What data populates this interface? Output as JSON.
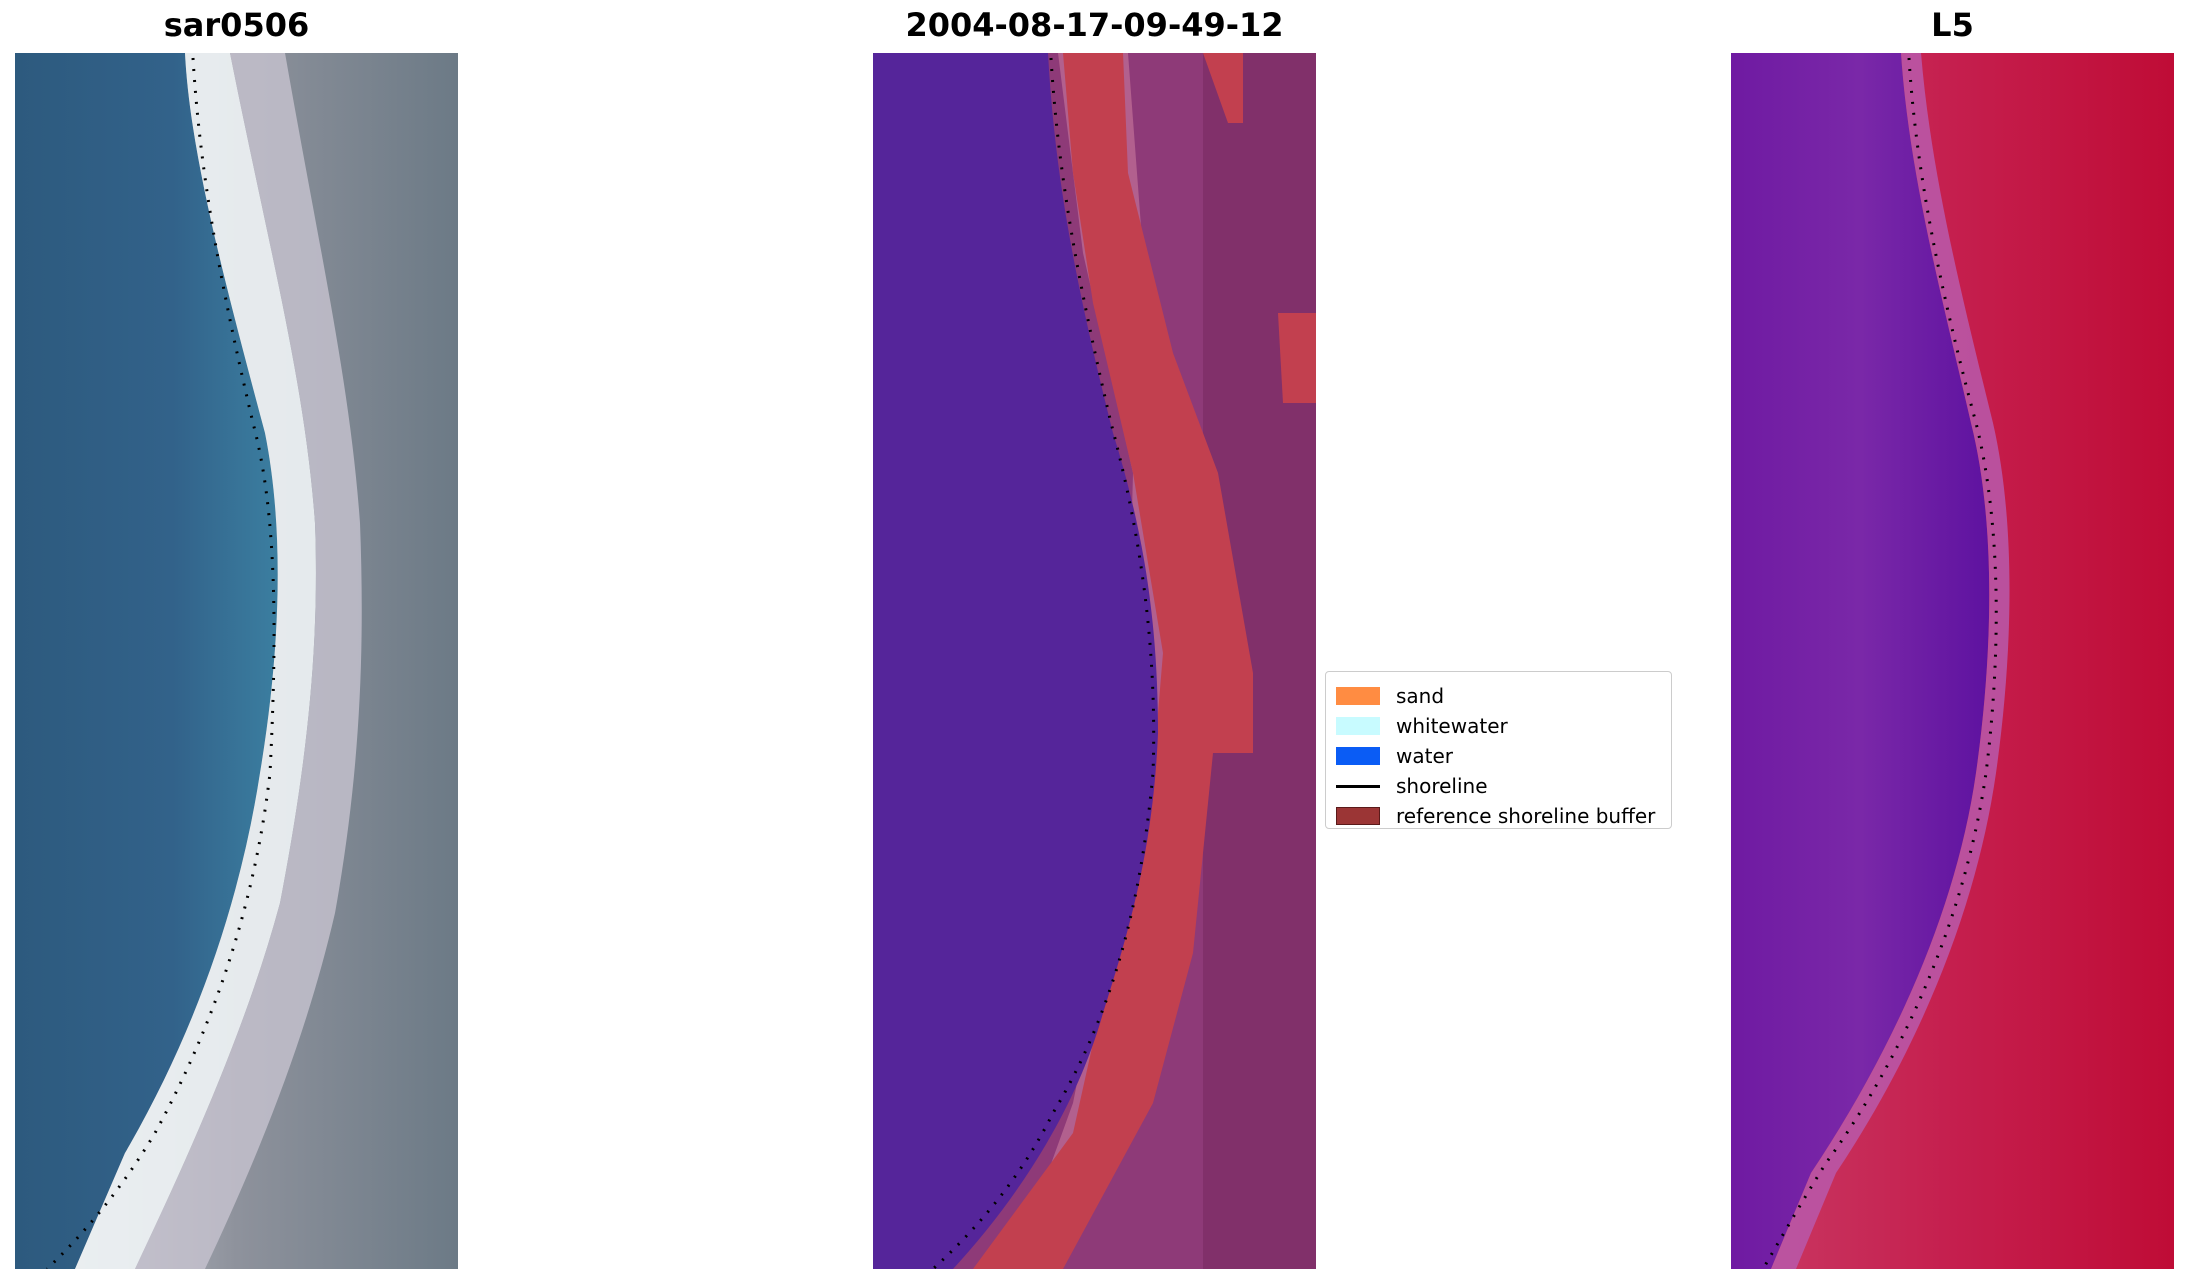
{
  "panels": [
    {
      "title": "sar0506"
    },
    {
      "title": "2004-08-17-09-49-12"
    },
    {
      "title": "L5"
    }
  ],
  "legend": {
    "items": [
      {
        "label": "sand",
        "kind": "patch",
        "color": "#ff8c42"
      },
      {
        "label": "whitewater",
        "kind": "patch",
        "color": "#c8fbff"
      },
      {
        "label": "water",
        "kind": "patch",
        "color": "#0a5cf5"
      },
      {
        "label": "shoreline",
        "kind": "line",
        "color": "#000000"
      },
      {
        "label": "reference shoreline buffer",
        "kind": "patch",
        "color": "#9b3535"
      }
    ]
  },
  "colors": {
    "rgb_water": "#2f5f82",
    "rgb_surf": "#f0f4f5",
    "rgb_land": "#7a8590",
    "class_water": "#55259a",
    "class_buffer": "#c2404f",
    "class_land": "#9a3e7c",
    "index_water": "#7822a4",
    "index_land": "#c1103a"
  }
}
